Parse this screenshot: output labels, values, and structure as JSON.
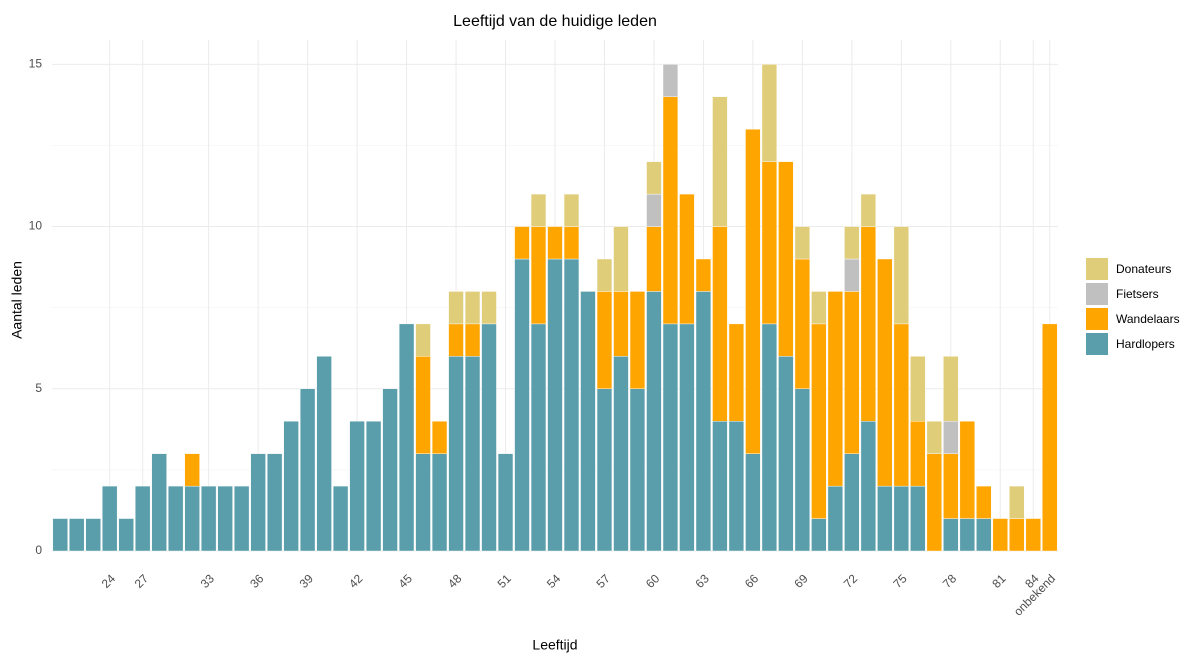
{
  "chart_data": {
    "type": "stacked_bar",
    "title": "Leeftijd van de huidige leden",
    "x_label": "Leeftijd",
    "y_label": "Aantal leden",
    "categories": [
      null,
      null,
      null,
      "24",
      null,
      "27",
      null,
      null,
      null,
      "33",
      null,
      null,
      "36",
      null,
      null,
      "39",
      null,
      null,
      "42",
      null,
      null,
      "45",
      null,
      null,
      "48",
      null,
      null,
      "51",
      null,
      null,
      "54",
      null,
      null,
      "57",
      null,
      null,
      "60",
      null,
      null,
      "63",
      null,
      null,
      "66",
      null,
      null,
      "69",
      null,
      null,
      "72",
      null,
      null,
      "75",
      null,
      null,
      "78",
      null,
      null,
      "81",
      null,
      "84",
      "onbekend"
    ],
    "series": [
      {
        "name": "Donateurs",
        "color": "#e0cd7a",
        "values": [
          0,
          0,
          0,
          0,
          0,
          0,
          0,
          0,
          0,
          0,
          0,
          0,
          0,
          0,
          0,
          0,
          0,
          0,
          0,
          0,
          0,
          0,
          1,
          0,
          1,
          1,
          1,
          0,
          0,
          1,
          0,
          1,
          0,
          1,
          2,
          0,
          1,
          0,
          0,
          0,
          4,
          0,
          0,
          3,
          0,
          1,
          1,
          0,
          1,
          1,
          0,
          3,
          2,
          1,
          2,
          0,
          0,
          0,
          1,
          0,
          0
        ]
      },
      {
        "name": "Fietsers",
        "color": "#c0c0c0",
        "values": [
          0,
          0,
          0,
          0,
          0,
          0,
          0,
          0,
          0,
          0,
          0,
          0,
          0,
          0,
          0,
          0,
          0,
          0,
          0,
          0,
          0,
          0,
          0,
          0,
          0,
          0,
          0,
          0,
          0,
          0,
          0,
          0,
          0,
          0,
          0,
          0,
          1,
          1,
          0,
          0,
          0,
          0,
          0,
          0,
          0,
          0,
          0,
          0,
          1,
          0,
          0,
          0,
          0,
          0,
          1,
          0,
          0,
          0,
          0,
          0,
          0
        ]
      },
      {
        "name": "Wandelaars",
        "color": "#ffa500",
        "values": [
          0,
          0,
          0,
          0,
          0,
          0,
          0,
          0,
          1,
          0,
          0,
          0,
          0,
          0,
          0,
          0,
          0,
          0,
          0,
          0,
          0,
          0,
          3,
          1,
          1,
          1,
          0,
          0,
          1,
          3,
          1,
          1,
          0,
          3,
          2,
          3,
          2,
          7,
          4,
          1,
          6,
          3,
          10,
          5,
          6,
          4,
          6,
          6,
          5,
          6,
          7,
          5,
          2,
          3,
          2,
          3,
          1,
          1,
          1,
          1,
          7
        ]
      },
      {
        "name": "Hardlopers",
        "color": "#5a9eab",
        "values": [
          1,
          1,
          1,
          2,
          1,
          2,
          3,
          2,
          2,
          2,
          2,
          2,
          3,
          3,
          4,
          5,
          6,
          2,
          4,
          4,
          5,
          7,
          3,
          3,
          6,
          6,
          7,
          3,
          9,
          7,
          9,
          9,
          8,
          5,
          6,
          5,
          8,
          7,
          7,
          8,
          4,
          4,
          3,
          7,
          6,
          5,
          1,
          2,
          3,
          4,
          2,
          2,
          2,
          0,
          1,
          1,
          1,
          0,
          0,
          0,
          0
        ]
      }
    ],
    "ylim": [
      0,
      15.75
    ],
    "yticks": [
      0,
      5,
      10,
      15
    ],
    "grid": true,
    "legend": "right"
  }
}
